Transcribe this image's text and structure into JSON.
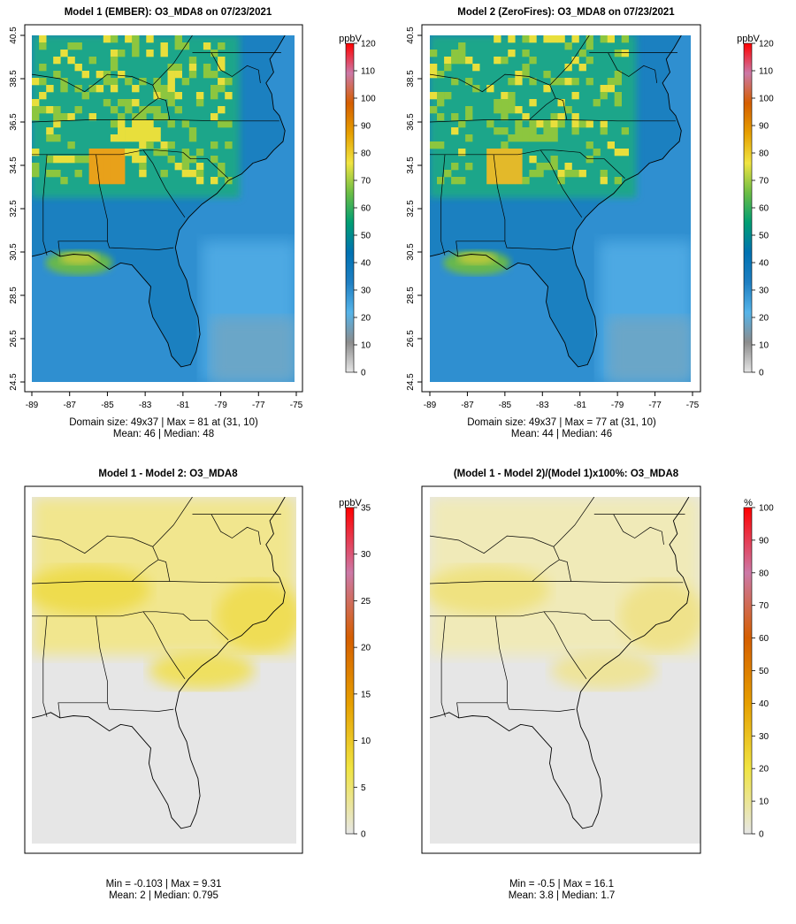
{
  "panels": [
    {
      "title": "Model 1 (EMBER): O3_MDA8 on 07/23/2021",
      "stats": [
        "Domain size: 49x37 | Max = 81 at (31, 10)",
        "Mean: 46 |  Median: 48"
      ]
    },
    {
      "title": "Model 2 (ZeroFires): O3_MDA8 on 07/23/2021",
      "stats": [
        "Domain size: 49x37 | Max = 77 at (31, 10)",
        "Mean: 44 |  Median: 46"
      ]
    },
    {
      "title": "Model 1 - Model 2: O3_MDA8",
      "stats": [
        "Min = -0.103 | Max = 9.31",
        "Mean: 2 |  Median: 0.795"
      ]
    },
    {
      "title": "(Model 1 - Model 2)/(Model 1)x100%: O3_MDA8",
      "stats": [
        "Min = -0.5 | Max = 16.1",
        "Mean: 3.8 |  Median: 1.7"
      ]
    }
  ],
  "chart_data": [
    {
      "type": "heatmap",
      "title": "Model 1 (EMBER): O3_MDA8 on 07/23/2021",
      "x_ticks": [
        "-89",
        "-87",
        "-85",
        "-83",
        "-81",
        "-79",
        "-77",
        "-75"
      ],
      "y_ticks": [
        "24.5",
        "26.5",
        "28.5",
        "30.5",
        "32.5",
        "34.5",
        "36.5",
        "38.5",
        "40.5"
      ],
      "xlim": [
        -89,
        -75
      ],
      "ylim": [
        24.5,
        40.5
      ],
      "colorbar": {
        "unit": "ppbV",
        "ticks": [
          "0",
          "10",
          "20",
          "30",
          "40",
          "50",
          "60",
          "70",
          "80",
          "90",
          "100",
          "110",
          "120"
        ],
        "range": [
          0,
          120
        ]
      },
      "grid_size": [
        49,
        37
      ],
      "max": 81,
      "max_at": [
        31,
        10
      ],
      "mean": 46,
      "median": 48
    },
    {
      "type": "heatmap",
      "title": "Model 2 (ZeroFires): O3_MDA8 on 07/23/2021",
      "x_ticks": [
        "-89",
        "-87",
        "-85",
        "-83",
        "-81",
        "-79",
        "-77",
        "-75"
      ],
      "y_ticks": [
        "24.5",
        "26.5",
        "28.5",
        "30.5",
        "32.5",
        "34.5",
        "36.5",
        "38.5",
        "40.5"
      ],
      "xlim": [
        -89,
        -75
      ],
      "ylim": [
        24.5,
        40.5
      ],
      "colorbar": {
        "unit": "ppbV",
        "ticks": [
          "0",
          "10",
          "20",
          "30",
          "40",
          "50",
          "60",
          "70",
          "80",
          "90",
          "100",
          "110",
          "120"
        ],
        "range": [
          0,
          120
        ]
      },
      "grid_size": [
        49,
        37
      ],
      "max": 77,
      "max_at": [
        31,
        10
      ],
      "mean": 44,
      "median": 46
    },
    {
      "type": "heatmap",
      "title": "Model 1 - Model 2: O3_MDA8",
      "colorbar": {
        "unit": "ppbV",
        "ticks": [
          "0",
          "5",
          "10",
          "15",
          "20",
          "25",
          "30",
          "35"
        ],
        "range": [
          0,
          35
        ]
      },
      "min": -0.103,
      "max": 9.31,
      "mean": 2,
      "median": 0.795
    },
    {
      "type": "heatmap",
      "title": "(Model 1 - Model 2)/(Model 1)x100%: O3_MDA8",
      "colorbar": {
        "unit": "%",
        "ticks": [
          "0",
          "10",
          "20",
          "30",
          "40",
          "50",
          "60",
          "70",
          "80",
          "90",
          "100"
        ],
        "range": [
          0,
          100
        ]
      },
      "min": -0.5,
      "max": 16.1,
      "mean": 3.8,
      "median": 1.7
    }
  ],
  "colors": {
    "scale_conc": [
      "#e6e6e6",
      "#8c8c8c",
      "#56b4e9",
      "#1f7fc2",
      "#0072b2",
      "#009e73",
      "#6bbd45",
      "#f0e442",
      "#e69f00",
      "#d55e00",
      "#cc79a7",
      "#ff0000"
    ],
    "scale_diff": [
      "#e6e6e6",
      "#f0e442",
      "#e69f00",
      "#d55e00",
      "#cc79a7",
      "#ff0000"
    ]
  }
}
